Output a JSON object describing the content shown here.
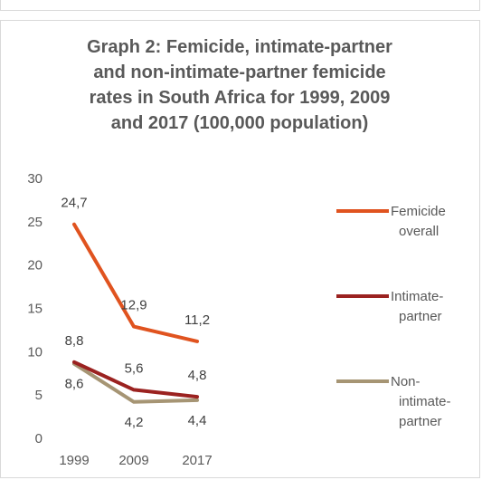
{
  "chart_data": {
    "type": "line",
    "title": "Graph 2: Femicide, intimate-partner\nand non-intimate-partner femicide\nrates in South Africa for 1999, 2009\nand 2017 (100,000 population)",
    "xlabel": "",
    "ylabel": "",
    "categories": [
      "1999",
      "2009",
      "2017"
    ],
    "ylim": [
      0,
      30
    ],
    "yticks": [
      "0",
      "5",
      "10",
      "15",
      "20",
      "25",
      "30"
    ],
    "grid": false,
    "legend_position": "right",
    "series": [
      {
        "name": "Femicide overall",
        "legend_lines": [
          "Femicide",
          "overall"
        ],
        "color": "#e0531f",
        "values": [
          24.7,
          12.9,
          11.2
        ],
        "labels": [
          "24,7",
          "12,9",
          "11,2"
        ]
      },
      {
        "name": "Intimate-partner",
        "legend_lines": [
          "Intimate-",
          "partner"
        ],
        "color": "#9b2220",
        "values": [
          8.8,
          5.6,
          4.8
        ],
        "labels": [
          "8,8",
          "5,6",
          "4,8"
        ]
      },
      {
        "name": "Non-intimate-partner",
        "legend_lines": [
          "Non-",
          "intimate-",
          "partner"
        ],
        "color": "#a69574",
        "values": [
          8.6,
          4.2,
          4.4
        ],
        "labels": [
          "8,6",
          "4,2",
          "4,4"
        ]
      }
    ]
  }
}
